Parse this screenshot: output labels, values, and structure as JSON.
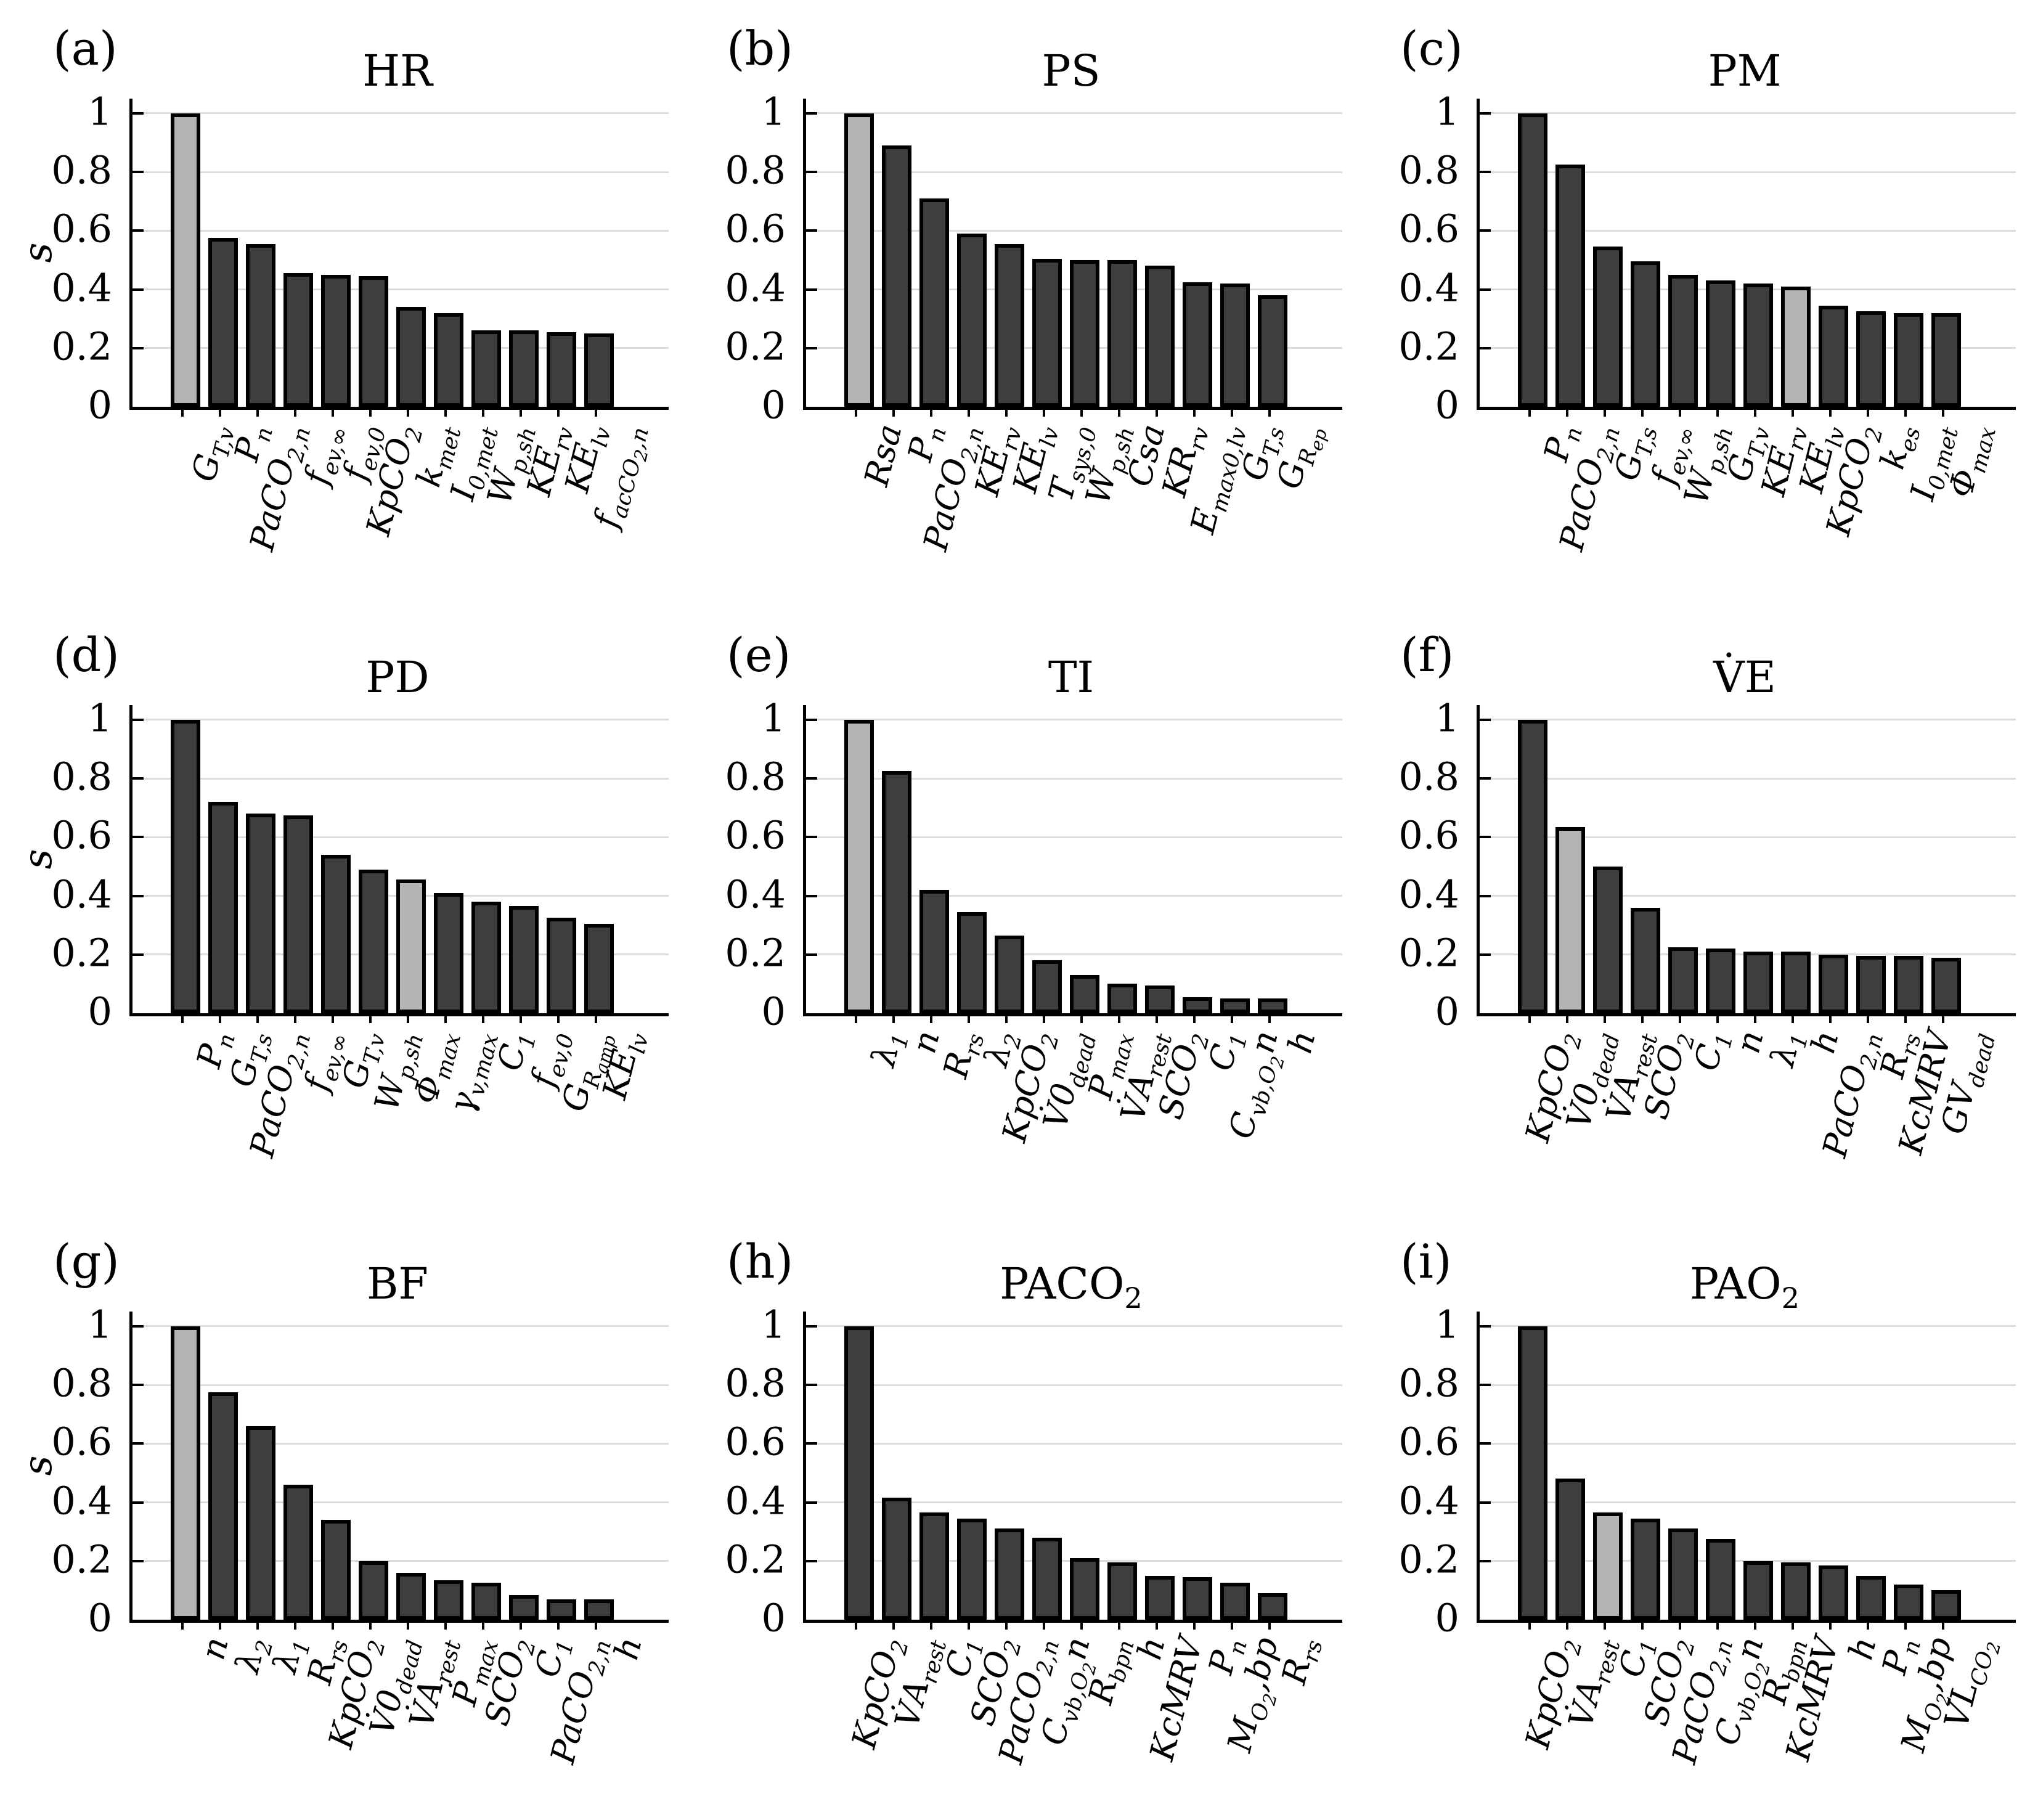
{
  "figure": {
    "y_axis_label": "s",
    "y_ticks": [
      "0",
      "0.2",
      "0.4",
      "0.6",
      "0.8",
      "1"
    ],
    "colors": {
      "bar_dark": "#3e3e3e",
      "bar_light": "#b4b4b4",
      "bar_edge": "#000000",
      "grid": "#dcdcdc",
      "axis": "#000000",
      "background": "#ffffff"
    }
  },
  "chart_data": [
    {
      "type": "bar",
      "letter": "(a)",
      "title": "HR",
      "ylabel": "s",
      "ylim": [
        0,
        1.05
      ],
      "grid": true,
      "categories": [
        "G_{T,v}",
        "P_{n}",
        "PaCO_{2,n}",
        "f_{ev,∞}",
        "f_{ev,0}",
        "KpCO_{2}",
        "k_{met}",
        "I_{0,met}",
        "W_{p,sh}",
        "KE_{rv}",
        "KE_{lv}",
        "f_{acCO_{2},n}"
      ],
      "values": [
        1.0,
        0.575,
        0.555,
        0.455,
        0.45,
        0.445,
        0.34,
        0.32,
        0.26,
        0.26,
        0.255,
        0.25
      ],
      "highlight_index": 0
    },
    {
      "type": "bar",
      "letter": "(b)",
      "title": "PS",
      "ylabel": "",
      "ylim": [
        0,
        1.05
      ],
      "grid": true,
      "categories": [
        "Rsa",
        "P_{n}",
        "PaCO_{2,n}",
        "KE_{rv}",
        "KE_{lv}",
        "T_{sys,0}",
        "W_{p,sh}",
        "Csa",
        "KR_{rv}",
        "E_{max0,lv}",
        "G_{T,s}",
        "G_{R_{ep}}"
      ],
      "values": [
        1.0,
        0.89,
        0.71,
        0.59,
        0.555,
        0.505,
        0.5,
        0.5,
        0.48,
        0.425,
        0.42,
        0.38
      ],
      "highlight_index": 0
    },
    {
      "type": "bar",
      "letter": "(c)",
      "title": "PM",
      "ylabel": "",
      "ylim": [
        0,
        1.05
      ],
      "grid": true,
      "categories": [
        "P_{n}",
        "PaCO_{2,n}",
        "G_{T,s}",
        "f_{ev,∞}",
        "W_{p,sh}",
        "G_{T,v}",
        "KE_{rv}",
        "KE_{lv}",
        "KpCO_{2}",
        "k_{es}",
        "I_{0,met}",
        "Φ_{max}"
      ],
      "values": [
        1.0,
        0.825,
        0.545,
        0.495,
        0.45,
        0.43,
        0.42,
        0.41,
        0.345,
        0.325,
        0.32,
        0.32
      ],
      "highlight_index": 7
    },
    {
      "type": "bar",
      "letter": "(d)",
      "title": "PD",
      "ylabel": "s",
      "ylim": [
        0,
        1.05
      ],
      "grid": true,
      "categories": [
        "P_{n}",
        "G_{T,s}",
        "PaCO_{2,n}",
        "f_{ev,∞}",
        "G_{T,v}",
        "W_{p,sh}",
        "Φ_{max}",
        "γ_{v,max}",
        "C_{1}",
        "f_{ev,0}",
        "G_{R_{amp}}",
        "KE_{lv}"
      ],
      "values": [
        1.0,
        0.72,
        0.68,
        0.675,
        0.54,
        0.49,
        0.455,
        0.41,
        0.38,
        0.365,
        0.325,
        0.305
      ],
      "highlight_index": 6
    },
    {
      "type": "bar",
      "letter": "(e)",
      "title": "TI",
      "ylabel": "",
      "ylim": [
        0,
        1.05
      ],
      "grid": true,
      "categories": [
        "λ_{1}",
        "n",
        "R_{rs}",
        "λ_{2}",
        "KpCO_{2}",
        "V̇0_{dead}",
        "Ṗ_{max}",
        "V̇A_{rest}",
        "SCO_{2}",
        "C_{1}",
        "C_{vb,O_{2}}n",
        "h"
      ],
      "values": [
        1.0,
        0.825,
        0.42,
        0.345,
        0.265,
        0.18,
        0.13,
        0.1,
        0.095,
        0.055,
        0.05,
        0.05
      ],
      "highlight_index": 0
    },
    {
      "type": "bar",
      "letter": "(f)",
      "title": "V̇E",
      "ylabel": "",
      "ylim": [
        0,
        1.05
      ],
      "grid": true,
      "categories": [
        "KpCO_{2}",
        "V̇0_{dead}",
        "V̇A_{rest}",
        "SCO_{2}",
        "C_{1}",
        "n",
        "λ_{1}",
        "h",
        "PaCO_{2,n}",
        "R_{rs}",
        "KcMRV",
        "GV_{dead}"
      ],
      "values": [
        1.0,
        0.635,
        0.5,
        0.36,
        0.225,
        0.22,
        0.21,
        0.21,
        0.2,
        0.195,
        0.195,
        0.19
      ],
      "highlight_index": 1
    },
    {
      "type": "bar",
      "letter": "(g)",
      "title": "BF",
      "ylabel": "s",
      "ylim": [
        0,
        1.05
      ],
      "grid": true,
      "categories": [
        "n",
        "λ_{2}",
        "λ_{1}",
        "R_{rs}",
        "KpCO_{2}",
        "V̇0_{dead}",
        "V̇A_{rest}",
        "Ṗ_{max}",
        "SCO_{2}",
        "C_{1}",
        "PaCO_{2,n}",
        "h"
      ],
      "values": [
        1.0,
        0.775,
        0.66,
        0.46,
        0.34,
        0.2,
        0.16,
        0.135,
        0.125,
        0.085,
        0.07,
        0.07
      ],
      "highlight_index": 0
    },
    {
      "type": "bar",
      "letter": "(h)",
      "title": "PACO_{2}",
      "ylabel": "",
      "ylim": [
        0,
        1.05
      ],
      "grid": true,
      "categories": [
        "KpCO_{2}",
        "V̇A_{rest}",
        "C_{1}",
        "SCO_{2}",
        "PaCO_{2,n}",
        "C_{vb,O_{2}}n",
        "R_{bpn}",
        "h",
        "KcMRV",
        "P_{n}",
        "M_{O_{2}},bp",
        "R_{rs}"
      ],
      "values": [
        1.0,
        0.415,
        0.365,
        0.345,
        0.31,
        0.28,
        0.21,
        0.195,
        0.15,
        0.145,
        0.125,
        0.09
      ],
      "highlight_index": -1
    },
    {
      "type": "bar",
      "letter": "(i)",
      "title": "PAO_{2}",
      "ylabel": "",
      "ylim": [
        0,
        1.05
      ],
      "grid": true,
      "categories": [
        "KpCO_{2}",
        "V̇A_{rest}",
        "C_{1}",
        "SCO_{2}",
        "PaCO_{2,n}",
        "C_{vb,O_{2}}n",
        "R_{bpn}",
        "KcMRV",
        "h",
        "P_{n}",
        "M_{O_{2}},bp",
        "VL_{CO_{2}}"
      ],
      "values": [
        1.0,
        0.48,
        0.365,
        0.345,
        0.31,
        0.275,
        0.2,
        0.195,
        0.185,
        0.15,
        0.12,
        0.1
      ],
      "highlight_index": 2
    }
  ]
}
